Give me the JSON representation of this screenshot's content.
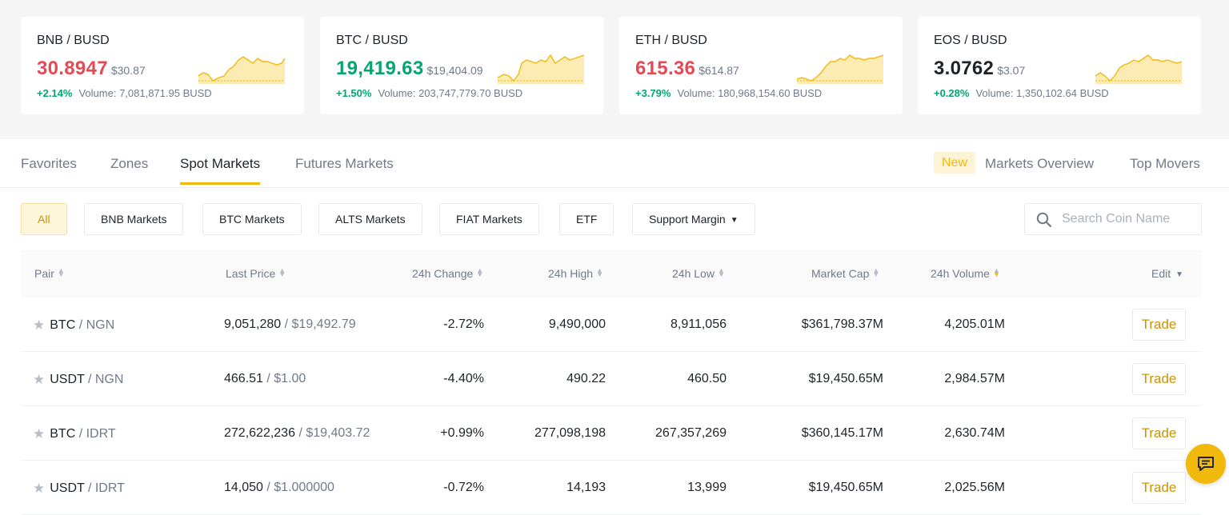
{
  "tickers": [
    {
      "pair": "BNB / BUSD",
      "price": "30.8947",
      "usd": "$30.87",
      "change": "+2.14%",
      "volume_label": "Volume:",
      "volume": "7,081,871.95 BUSD",
      "dir": "down"
    },
    {
      "pair": "BTC / BUSD",
      "price": "19,419.63",
      "usd": "$19,404.09",
      "change": "+1.50%",
      "volume_label": "Volume:",
      "volume": "203,747,779.70 BUSD",
      "dir": "up"
    },
    {
      "pair": "ETH / BUSD",
      "price": "615.36",
      "usd": "$614.87",
      "change": "+3.79%",
      "volume_label": "Volume:",
      "volume": "180,968,154.60 BUSD",
      "dir": "down"
    },
    {
      "pair": "EOS / BUSD",
      "price": "3.0762",
      "usd": "$3.07",
      "change": "+0.28%",
      "volume_label": "Volume:",
      "volume": "1,350,102.64 BUSD",
      "dir": "neutral"
    }
  ],
  "colors": {
    "up": "#03a66d",
    "down": "#e84855",
    "accent": "#f0b90b",
    "spark_fill": "#fcecb3"
  },
  "tabs": {
    "favorites": "Favorites",
    "zones": "Zones",
    "spot": "Spot Markets",
    "futures": "Futures Markets",
    "new_badge": "New",
    "overview": "Markets Overview",
    "movers": "Top Movers"
  },
  "filters": {
    "all": "All",
    "bnb": "BNB Markets",
    "btc": "BTC Markets",
    "alts": "ALTS Markets",
    "fiat": "FIAT Markets",
    "etf": "ETF",
    "margin": "Support Margin"
  },
  "search": {
    "placeholder": "Search Coin Name",
    "icon": "search-icon"
  },
  "table": {
    "headers": {
      "pair": "Pair",
      "last_price": "Last Price",
      "change": "24h Change",
      "high": "24h High",
      "low": "24h Low",
      "market_cap": "Market Cap",
      "volume": "24h Volume",
      "edit": "Edit"
    },
    "trade_label": "Trade",
    "rows": [
      {
        "base": "BTC",
        "quote": "/ NGN",
        "price": "9,051,280",
        "price_usd": "/ $19,492.79",
        "change": "-2.72%",
        "dir": "down",
        "high": "9,490,000",
        "low": "8,911,056",
        "cap": "$361,798.37M",
        "vol": "4,205.01M"
      },
      {
        "base": "USDT",
        "quote": "/ NGN",
        "price": "466.51",
        "price_usd": "/ $1.00",
        "change": "-4.40%",
        "dir": "down",
        "high": "490.22",
        "low": "460.50",
        "cap": "$19,450.65M",
        "vol": "2,984.57M"
      },
      {
        "base": "BTC",
        "quote": "/ IDRT",
        "price": "272,622,236",
        "price_usd": "/ $19,403.72",
        "change": "+0.99%",
        "dir": "up",
        "high": "277,098,198",
        "low": "267,357,269",
        "cap": "$360,145.17M",
        "vol": "2,630.74M"
      },
      {
        "base": "USDT",
        "quote": "/ IDRT",
        "price": "14,050",
        "price_usd": "/ $1.000000",
        "change": "-0.72%",
        "dir": "down",
        "high": "14,193",
        "low": "13,999",
        "cap": "$19,450.65M",
        "vol": "2,025.56M"
      }
    ]
  }
}
